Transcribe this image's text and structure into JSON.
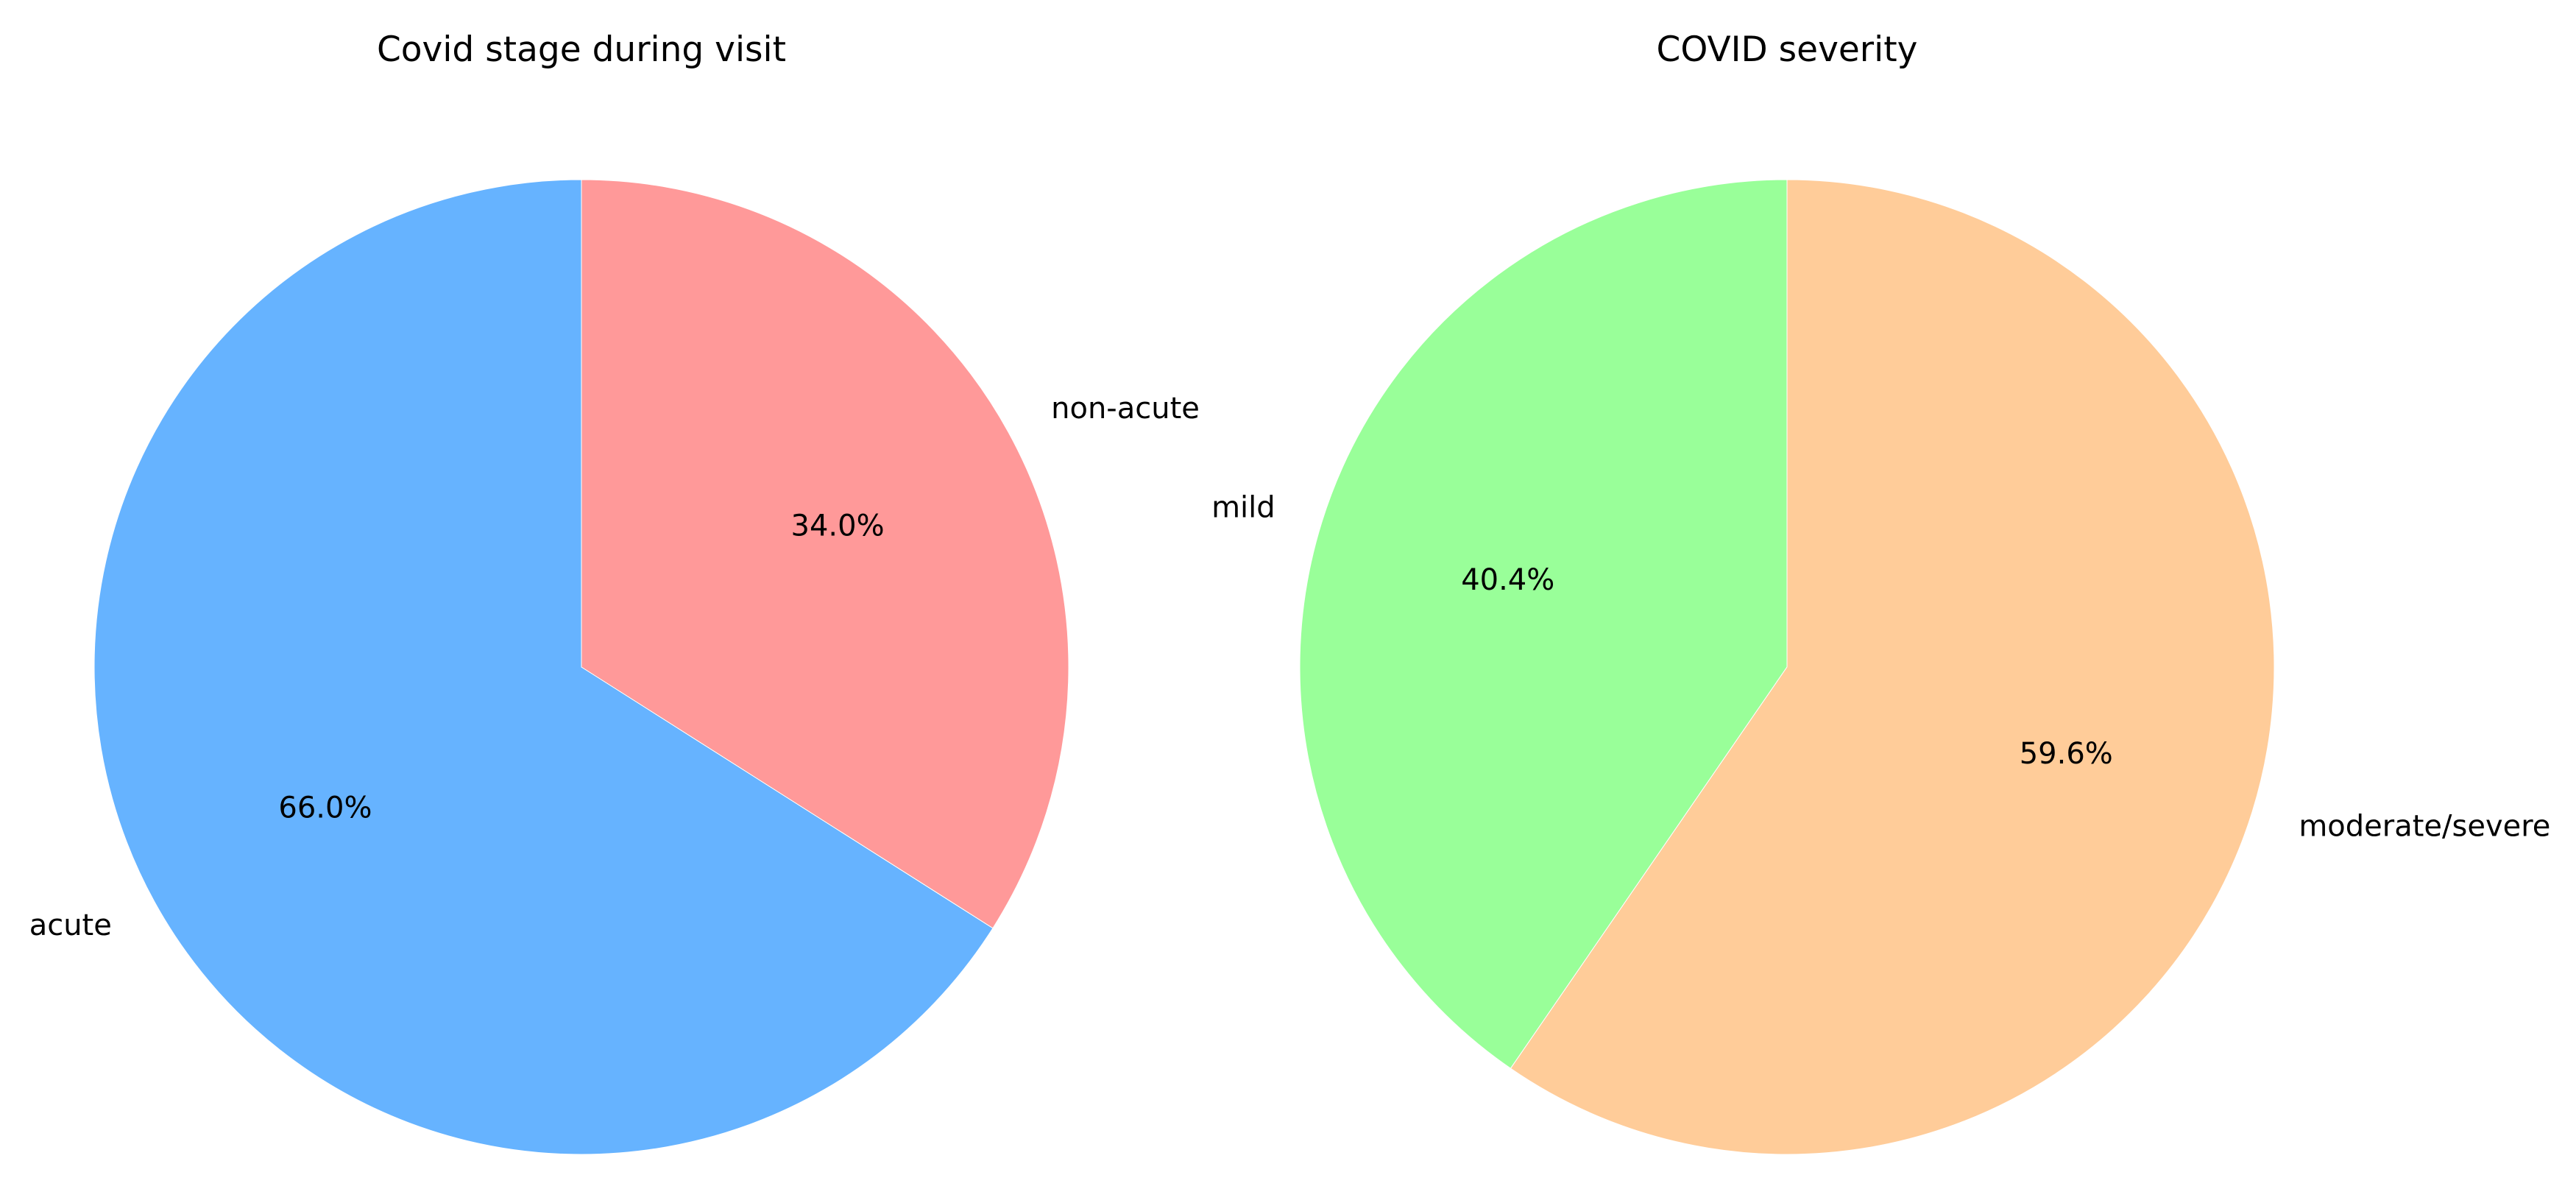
{
  "chart_data": [
    {
      "type": "pie",
      "title": "Covid stage during visit",
      "start_angle_deg": 90,
      "direction": "counterclockwise",
      "slices": [
        {
          "label": "acute",
          "value": 66.0,
          "pct_label": "66.0%",
          "color": "#66b3ff"
        },
        {
          "label": "non-acute",
          "value": 34.0,
          "pct_label": "34.0%",
          "color": "#ff9999"
        }
      ]
    },
    {
      "type": "pie",
      "title": "COVID severity",
      "start_angle_deg": 90,
      "direction": "counterclockwise",
      "slices": [
        {
          "label": "mild",
          "value": 40.4,
          "pct_label": "40.4%",
          "color": "#99ff99"
        },
        {
          "label": "moderate/severe",
          "value": 59.6,
          "pct_label": "59.6%",
          "color": "#ffcc99"
        }
      ]
    }
  ]
}
